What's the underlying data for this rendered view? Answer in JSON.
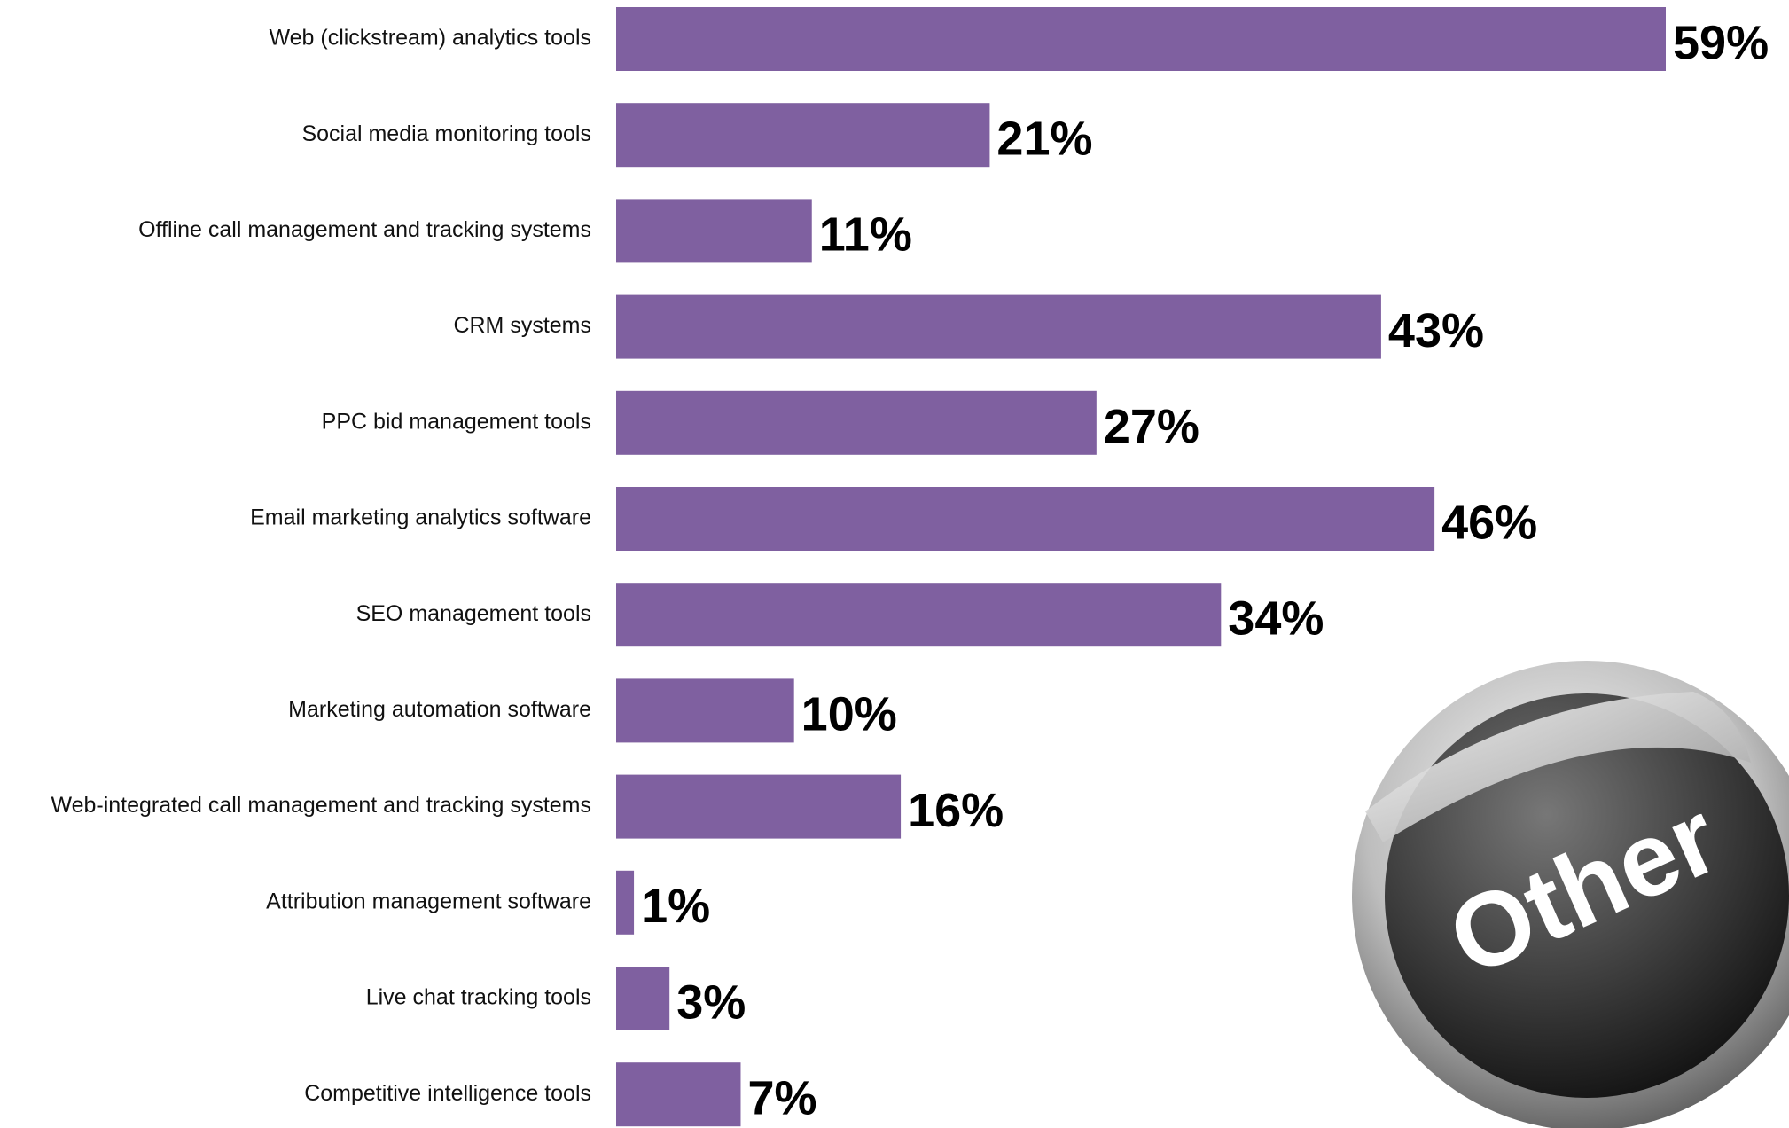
{
  "chart_data": {
    "type": "hbar",
    "categories": [
      "Web (clickstream) analytics tools",
      "Social media monitoring tools",
      "Offline call management and tracking systems",
      "CRM systems",
      "PPC bid management tools",
      "Email marketing analytics software",
      "SEO management tools",
      "Marketing automation software",
      "Web-integrated call management and tracking systems",
      "Attribution management software",
      "Live chat tracking tools",
      "Competitive intelligence tools"
    ],
    "values": [
      59,
      21,
      11,
      43,
      27,
      46,
      34,
      10,
      16,
      1,
      3,
      7
    ],
    "value_labels": [
      "59%",
      "21%",
      "11%",
      "43%",
      "27%",
      "46%",
      "34%",
      "10%",
      "16%",
      "1%",
      "3%",
      "7%"
    ],
    "color": "#7f60a0",
    "annotation": "Other"
  }
}
